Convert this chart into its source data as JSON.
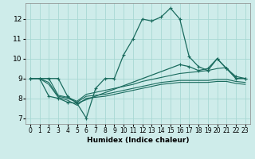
{
  "xlabel": "Humidex (Indice chaleur)",
  "ylabel": "",
  "xlim": [
    -0.5,
    23.5
  ],
  "ylim": [
    6.7,
    12.8
  ],
  "yticks": [
    7,
    8,
    9,
    10,
    11,
    12
  ],
  "xticks": [
    0,
    1,
    2,
    3,
    4,
    5,
    6,
    7,
    8,
    9,
    10,
    11,
    12,
    13,
    14,
    15,
    16,
    17,
    18,
    19,
    20,
    21,
    22,
    23
  ],
  "bg_color": "#ceecea",
  "grid_color": "#a8d8d4",
  "line_color": "#1a6b5e",
  "line1": {
    "x": [
      0,
      1,
      2,
      3,
      4,
      5,
      6,
      7,
      8,
      9,
      10,
      11,
      12,
      13,
      14,
      15,
      16,
      17,
      18,
      19,
      20,
      21,
      22,
      23
    ],
    "y": [
      9.0,
      9.0,
      9.0,
      9.0,
      8.1,
      7.75,
      7.0,
      8.5,
      9.0,
      9.0,
      10.2,
      11.0,
      12.0,
      11.9,
      12.1,
      12.55,
      12.0,
      10.1,
      9.6,
      9.4,
      10.0,
      9.5,
      9.0,
      9.0
    ]
  },
  "line2": {
    "x": [
      0,
      1,
      2,
      3,
      4,
      5,
      6,
      7,
      8,
      9,
      10,
      11,
      12,
      13,
      14,
      15,
      16,
      17,
      18,
      19,
      20,
      21,
      22,
      23
    ],
    "y": [
      9.0,
      9.0,
      9.0,
      8.15,
      8.05,
      7.85,
      8.2,
      8.3,
      8.4,
      8.5,
      8.6,
      8.7,
      8.85,
      8.95,
      9.05,
      9.15,
      9.25,
      9.3,
      9.35,
      9.4,
      9.5,
      9.55,
      9.0,
      9.0
    ]
  },
  "line3": {
    "x": [
      0,
      1,
      2,
      3,
      4,
      5,
      6,
      7,
      8,
      9,
      10,
      11,
      12,
      13,
      14,
      15,
      16,
      17,
      18,
      19,
      20,
      21,
      22,
      23
    ],
    "y": [
      9.0,
      9.0,
      8.8,
      8.1,
      8.0,
      7.8,
      8.1,
      8.15,
      8.2,
      8.3,
      8.4,
      8.5,
      8.6,
      8.7,
      8.8,
      8.85,
      8.9,
      8.9,
      8.9,
      8.9,
      8.95,
      8.95,
      8.85,
      8.8
    ]
  },
  "line4": {
    "x": [
      0,
      1,
      2,
      3,
      4,
      5,
      6,
      7,
      8,
      9,
      10,
      11,
      12,
      13,
      14,
      15,
      16,
      17,
      18,
      19,
      20,
      21,
      22,
      23
    ],
    "y": [
      9.0,
      9.0,
      8.7,
      8.05,
      7.9,
      7.65,
      8.0,
      8.05,
      8.1,
      8.2,
      8.3,
      8.4,
      8.5,
      8.6,
      8.7,
      8.75,
      8.8,
      8.8,
      8.8,
      8.8,
      8.85,
      8.85,
      8.75,
      8.7
    ]
  },
  "line5": {
    "x": [
      0,
      1,
      2,
      3,
      4,
      5,
      16,
      17,
      18,
      19,
      20,
      21,
      22,
      23
    ],
    "y": [
      9.0,
      9.0,
      8.1,
      8.0,
      7.8,
      7.75,
      9.7,
      9.6,
      9.4,
      9.5,
      10.0,
      9.5,
      9.1,
      9.0
    ]
  }
}
